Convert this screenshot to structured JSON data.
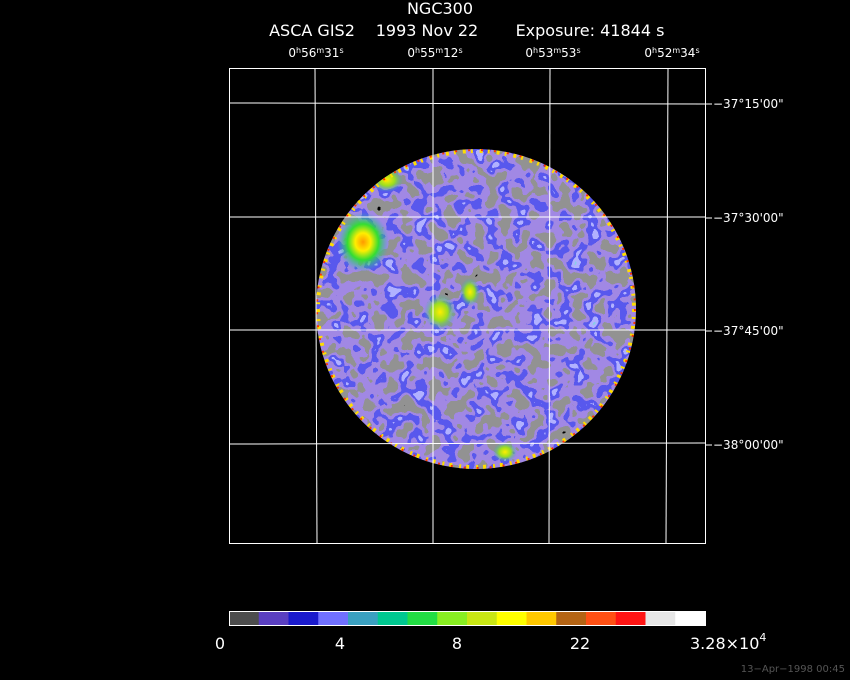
{
  "title": "NGC300",
  "subtitle": {
    "instrument": "ASCA GIS2",
    "date": "1993 Nov 22",
    "exposure": "Exposure: 41844 s"
  },
  "ra_axis": {
    "units": {
      "h": "h",
      "m": "m",
      "s": "s"
    },
    "labels": [
      {
        "h": "0",
        "m": "56",
        "s": "31"
      },
      {
        "h": "0",
        "m": "55",
        "s": "12"
      },
      {
        "h": "0",
        "m": "53",
        "s": "53"
      },
      {
        "h": "0",
        "m": "52",
        "s": "34"
      }
    ]
  },
  "dec_axis": {
    "labels": [
      "−37°15'00\"",
      "−37°30'00\"",
      "−37°45'00\"",
      "−38°00'00\""
    ]
  },
  "colorbar": {
    "labels": [
      "0",
      "4",
      "8",
      "22"
    ],
    "max_label": {
      "mantissa": "3.28×10",
      "exponent": "4"
    }
  },
  "timestamp": "13−Apr−1998 00:45"
}
